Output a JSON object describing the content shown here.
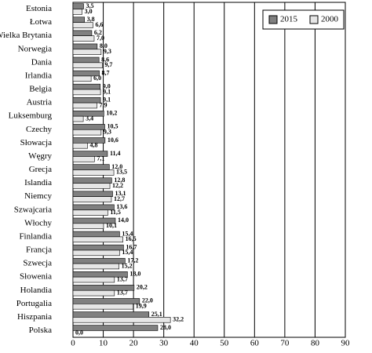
{
  "chart_data": {
    "type": "hbar",
    "categories": [
      "Estonia",
      "Łotwa",
      "Wielka Brytania",
      "Norwegia",
      "Dania",
      "Irlandia",
      "Belgia",
      "Austria",
      "Luksemburg",
      "Czechy",
      "Słowacja",
      "Węgry",
      "Grecja",
      "Islandia",
      "Niemcy",
      "Szwajcaria",
      "Włochy",
      "Finlandia",
      "Francja",
      "Szwecja",
      "Słowenia",
      "Holandia",
      "Portugalia",
      "Hiszpania",
      "Polska"
    ],
    "series": [
      {
        "name": "2015",
        "color": "#808080",
        "values": [
          3.5,
          3.8,
          6.2,
          8.0,
          8.6,
          8.7,
          9.0,
          9.1,
          10.2,
          10.5,
          10.6,
          11.4,
          12.0,
          12.8,
          13.1,
          13.6,
          14.0,
          15.4,
          16.7,
          17.2,
          18.0,
          20.2,
          22.0,
          25.1,
          28.0
        ],
        "value_labels": [
          "3,5",
          "3,8",
          "6,2",
          "8,0",
          "8,6",
          "8,7",
          "9,0",
          "9,1",
          "10,2",
          "10,5",
          "10,6",
          "11,4",
          "12,0",
          "12,8",
          "13,1",
          "13,6",
          "14,0",
          "15,4",
          "16,7",
          "17,2",
          "18,0",
          "20,2",
          "22,0",
          "25,1",
          "28,0"
        ]
      },
      {
        "name": "2000",
        "color": "#e6e6e6",
        "values": [
          3.0,
          6.6,
          7.0,
          9.3,
          9.7,
          6.0,
          9.1,
          7.9,
          3.4,
          9.3,
          4.8,
          7.1,
          13.5,
          12.2,
          12.7,
          11.5,
          10.1,
          16.5,
          15.4,
          15.2,
          13.7,
          13.7,
          19.9,
          32.2,
          0.0
        ],
        "value_labels": [
          "3,0",
          "6,6",
          "7,0",
          "9,3",
          "9,7",
          "6,0",
          "9,1",
          "7,9",
          "3,4",
          "9,3",
          "4,8",
          "7,1",
          "13,5",
          "12,2",
          "12,7",
          "11,5",
          "10,1",
          "16,5",
          "15,4",
          "15,2",
          "13,7",
          "13,7",
          "19,9",
          "32,2",
          "0,0"
        ]
      }
    ],
    "xlim": [
      0,
      90
    ],
    "xticks": [
      0,
      10,
      20,
      30,
      40,
      50,
      60,
      70,
      80,
      90
    ],
    "grid": true,
    "legend": "top-right"
  }
}
